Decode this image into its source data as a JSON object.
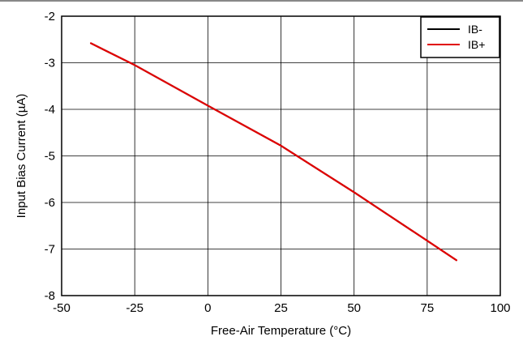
{
  "chart_data": {
    "type": "line",
    "xlabel": "Free-Air Temperature (°C)",
    "ylabel": "Input Bias Current (µA)",
    "xlim": [
      -50,
      100
    ],
    "ylim": [
      -8,
      -2
    ],
    "xticks": [
      "-50",
      "-25",
      "0",
      "25",
      "50",
      "75",
      "100"
    ],
    "yticks": [
      "-2",
      "-3",
      "-4",
      "-5",
      "-6",
      "-7",
      "-8"
    ],
    "grid": true,
    "legend_position": "top-right",
    "series": [
      {
        "name": "IB-",
        "color": "#000000",
        "x": [
          -40,
          -25,
          0,
          25,
          50,
          75,
          85
        ],
        "y": [
          -2.58,
          -3.05,
          -3.92,
          -4.78,
          -5.78,
          -6.82,
          -7.24
        ]
      },
      {
        "name": "IB+",
        "color": "#e00000",
        "x": [
          -40,
          -25,
          0,
          25,
          50,
          75,
          85
        ],
        "y": [
          -2.58,
          -3.05,
          -3.92,
          -4.78,
          -5.78,
          -6.82,
          -7.24
        ]
      }
    ]
  }
}
